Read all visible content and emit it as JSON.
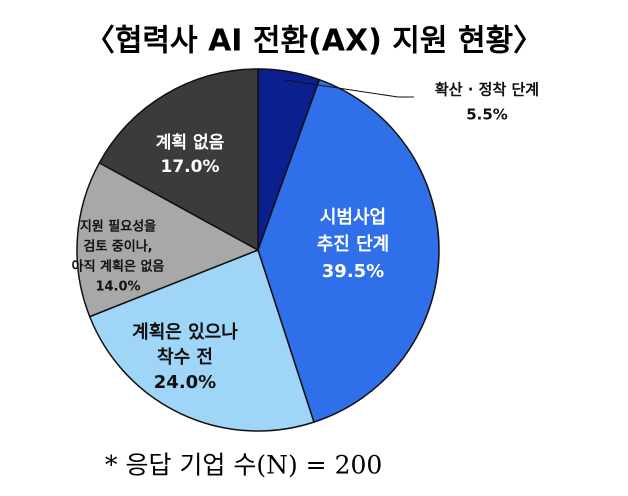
{
  "chart_data": {
    "type": "pie",
    "title": "〈협력사 AI 전환(AX) 지원 현황〉",
    "categories": [
      [
        "확산 · 정착 단계"
      ],
      [
        "시범사업",
        "추진 단계"
      ],
      [
        "계획은 있으나",
        "착수 전"
      ],
      [
        "지원 필요성을",
        "검토 중이나,",
        "아직 계획은 없음"
      ],
      [
        "계획 없음"
      ]
    ],
    "values": [
      5.5,
      39.5,
      24.0,
      14.0,
      17.0
    ],
    "value_labels": [
      "5.5%",
      "39.5%",
      "24.0%",
      "14.0%",
      "17.0%"
    ],
    "colors": [
      "#0b1f8f",
      "#2f6fe9",
      "#9fd5f6",
      "#a8a8a8",
      "#3b3b3b"
    ],
    "note": "* 응답 기업 수(N) = 200"
  }
}
